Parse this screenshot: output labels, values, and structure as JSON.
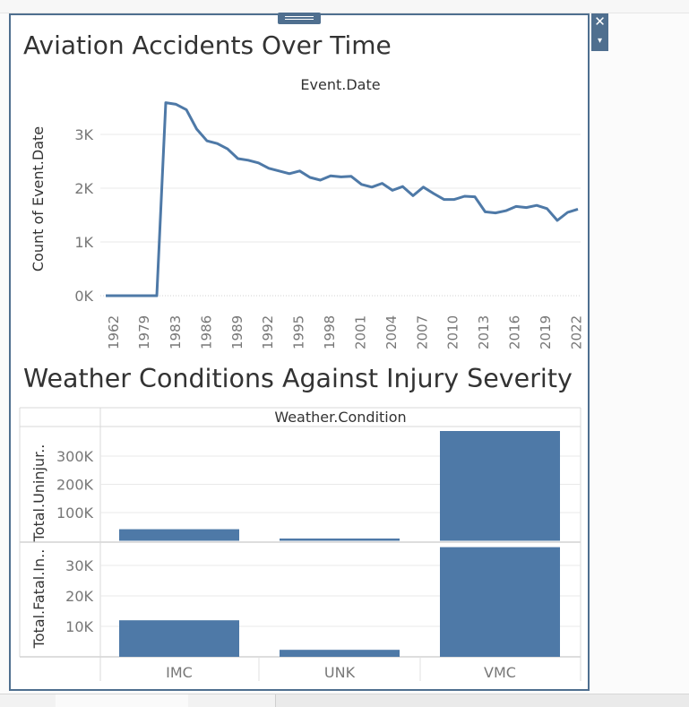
{
  "window": {
    "close_label": "✕",
    "menu_label": "▾"
  },
  "line_chart": {
    "title": "Aviation Accidents Over Time",
    "header": "Event.Date",
    "ylabel": "Count of Event.Date",
    "y_ticks": [
      "0K",
      "1K",
      "2K",
      "3K"
    ],
    "x_ticks": [
      "1962",
      "1979",
      "1983",
      "1986",
      "1989",
      "1992",
      "1995",
      "1998",
      "2001",
      "2004",
      "2007",
      "2010",
      "2013",
      "2016",
      "2019",
      "2022"
    ]
  },
  "bar_chart": {
    "title": "Weather Conditions Against Injury Severity",
    "header": "Weather.Condition",
    "top_ylabel": "Total.Uninjur..",
    "bottom_ylabel": "Total.Fatal.In..",
    "top_ticks": [
      "100K",
      "200K",
      "300K"
    ],
    "bottom_ticks": [
      "10K",
      "20K",
      "30K"
    ],
    "categories": [
      "IMC",
      "UNK",
      "VMC"
    ]
  },
  "colors": {
    "accent": "#4f6f8f",
    "series": "#4e79a7",
    "grid": "#e9e9e9",
    "text": "#333333",
    "tick": "#777777"
  },
  "chart_data": [
    {
      "type": "line",
      "title": "Aviation Accidents Over Time",
      "xlabel": "Event.Date",
      "ylabel": "Count of Event.Date",
      "ylim": [
        0,
        3700
      ],
      "x": [
        1962,
        1974,
        1977,
        1979,
        1981,
        1982,
        1983,
        1984,
        1985,
        1986,
        1987,
        1988,
        1989,
        1990,
        1991,
        1992,
        1993,
        1994,
        1995,
        1996,
        1997,
        1998,
        1999,
        2000,
        2001,
        2002,
        2003,
        2004,
        2005,
        2006,
        2007,
        2008,
        2009,
        2010,
        2011,
        2012,
        2013,
        2014,
        2015,
        2016,
        2017,
        2018,
        2019,
        2020,
        2021,
        2022
      ],
      "series": [
        {
          "values": [
            0,
            0,
            0,
            0,
            0,
            3590,
            3560,
            3460,
            3100,
            2880,
            2830,
            2730,
            2550,
            2520,
            2470,
            2370,
            2320,
            2270,
            2320,
            2200,
            2150,
            2230,
            2210,
            2220,
            2070,
            2020,
            2090,
            1960,
            2030,
            1860,
            2020,
            1900,
            1790,
            1790,
            1850,
            1840,
            1560,
            1540,
            1580,
            1660,
            1640,
            1680,
            1620,
            1400,
            1550,
            1610
          ]
        }
      ]
    },
    {
      "type": "bar",
      "title": "Weather Conditions Against Injury Severity",
      "xlabel": "Weather.Condition",
      "categories": [
        "IMC",
        "UNK",
        "VMC"
      ],
      "series": [
        {
          "name": "Total.Uninjur..",
          "values": [
            41000,
            8000,
            393000
          ],
          "ylim": [
            0,
            400000
          ]
        },
        {
          "name": "Total.Fatal.In..",
          "values": [
            12000,
            2300,
            36000
          ],
          "ylim": [
            0,
            36500
          ]
        }
      ]
    }
  ]
}
